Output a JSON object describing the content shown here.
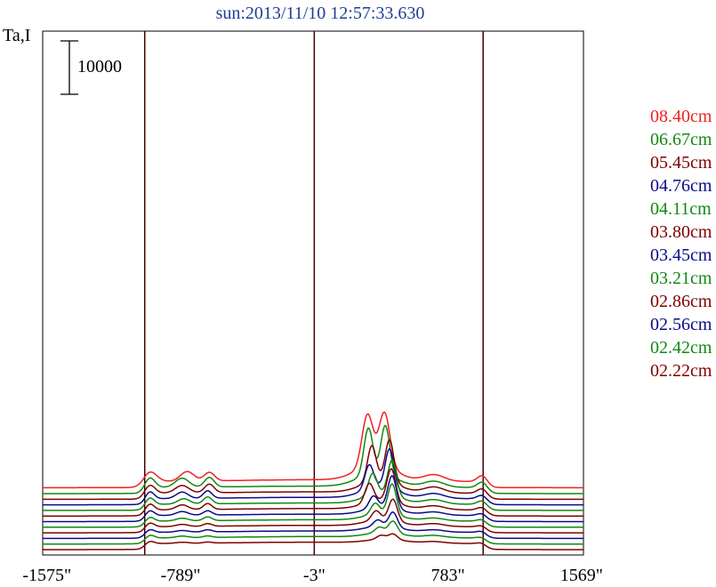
{
  "chart_data": {
    "type": "line",
    "title": "sun:2013/11/10 12:57:33.630",
    "ylabel": "Ta,I",
    "scale_bar": {
      "label": "10000",
      "value": 10000
    },
    "x_ticks": [
      "-1575\"",
      "-789\"",
      "-3\"",
      "783\"",
      "1569\""
    ],
    "x_tick_values": [
      -1575,
      -789,
      -3,
      783,
      1569
    ],
    "xlim": [
      -1600,
      1580
    ],
    "vertical_lines": [
      -1000,
      -3,
      990
    ],
    "legend_placement": "right",
    "colors": {
      "red": "#ee2222",
      "green": "#118811",
      "maroon": "#800000",
      "blue": "#0a0a8a"
    },
    "series": [
      {
        "name": "08.40cm",
        "color": "#ee2222",
        "baseline": 8600,
        "lobes": [
          [
            -970,
            40,
            1900
          ],
          [
            -750,
            40,
            1800
          ],
          [
            -620,
            30,
            1600
          ],
          [
            700,
            60,
            1200
          ],
          [
            990,
            30,
            1400
          ]
        ],
        "peaks": [
          [
            310,
            32,
            9600
          ],
          [
            410,
            32,
            10000
          ],
          [
            360,
            110,
            3000
          ]
        ],
        "center_level": 400
      },
      {
        "name": "06.67cm",
        "color": "#118811",
        "baseline": 7500,
        "lobes": [
          [
            -970,
            30,
            1900
          ],
          [
            -780,
            40,
            1700
          ],
          [
            -620,
            28,
            1800
          ],
          [
            700,
            60,
            1100
          ],
          [
            990,
            30,
            1300
          ]
        ],
        "peaks": [
          [
            315,
            26,
            8700
          ],
          [
            415,
            26,
            9200
          ],
          [
            365,
            110,
            2500
          ]
        ],
        "center_level": 300
      },
      {
        "name": "05.45cm",
        "color": "#800000",
        "baseline": 6430,
        "lobes": [
          [
            -970,
            30,
            1600
          ],
          [
            -780,
            40,
            1400
          ],
          [
            -620,
            28,
            1600
          ],
          [
            700,
            60,
            1100
          ],
          [
            990,
            30,
            1100
          ]
        ],
        "peaks": [
          [
            335,
            25,
            6500
          ],
          [
            440,
            25,
            7700
          ],
          [
            385,
            100,
            2500
          ]
        ],
        "center_level": 300
      },
      {
        "name": "04.76cm",
        "color": "#0a0a8a",
        "baseline": 5400,
        "lobes": [
          [
            -970,
            25,
            1400
          ],
          [
            -780,
            35,
            1200
          ],
          [
            -630,
            25,
            1400
          ],
          [
            700,
            60,
            900
          ],
          [
            990,
            30,
            900
          ]
        ],
        "peaks": [
          [
            320,
            25,
            4400
          ],
          [
            440,
            25,
            7300
          ],
          [
            385,
            100,
            2200
          ]
        ],
        "center_level": 300
      },
      {
        "name": "04.11cm",
        "color": "#118811",
        "baseline": 4350,
        "lobes": [
          [
            -970,
            25,
            1300
          ],
          [
            -770,
            35,
            1000
          ],
          [
            -630,
            25,
            1300
          ],
          [
            700,
            60,
            800
          ],
          [
            990,
            30,
            900
          ]
        ],
        "peaks": [
          [
            340,
            25,
            4000
          ],
          [
            455,
            25,
            6500
          ],
          [
            395,
            100,
            1900
          ]
        ],
        "center_level": 300
      },
      {
        "name": "03.80cm",
        "color": "#800000",
        "baseline": 3300,
        "lobes": [
          [
            -970,
            25,
            1200
          ],
          [
            -780,
            35,
            900
          ],
          [
            -630,
            25,
            1100
          ],
          [
            700,
            60,
            700
          ],
          [
            990,
            30,
            700
          ]
        ],
        "peaks": [
          [
            320,
            25,
            3500
          ],
          [
            450,
            25,
            6100
          ],
          [
            395,
            100,
            1700
          ]
        ],
        "center_level": 300
      },
      {
        "name": "03.45cm",
        "color": "#0a0a8a",
        "baseline": 2250,
        "lobes": [
          [
            -970,
            25,
            1000
          ],
          [
            -780,
            35,
            700
          ],
          [
            -630,
            25,
            800
          ],
          [
            700,
            60,
            600
          ],
          [
            990,
            30,
            600
          ]
        ],
        "peaks": [
          [
            345,
            25,
            2200
          ],
          [
            455,
            25,
            6000
          ],
          [
            400,
            100,
            1500
          ]
        ],
        "center_level": 300
      },
      {
        "name": "03.21cm",
        "color": "#118811",
        "baseline": 1200,
        "lobes": [
          [
            -970,
            25,
            800
          ],
          [
            -780,
            35,
            500
          ],
          [
            -630,
            25,
            700
          ],
          [
            700,
            60,
            500
          ],
          [
            990,
            30,
            500
          ]
        ],
        "peaks": [
          [
            355,
            25,
            2000
          ],
          [
            455,
            25,
            5700
          ],
          [
            400,
            100,
            1300
          ]
        ],
        "center_level": 300
      },
      {
        "name": "02.86cm",
        "color": "#800000",
        "baseline": 150,
        "lobes": [
          [
            -970,
            25,
            800
          ],
          [
            -780,
            35,
            400
          ],
          [
            -630,
            25,
            500
          ],
          [
            700,
            60,
            500
          ],
          [
            990,
            30,
            400
          ]
        ],
        "peaks": [
          [
            360,
            25,
            1700
          ],
          [
            460,
            25,
            4000
          ],
          [
            400,
            100,
            1200
          ]
        ],
        "center_level": 300
      },
      {
        "name": "02.56cm",
        "color": "#0a0a8a",
        "baseline": -900,
        "lobes": [
          [
            -970,
            25,
            600
          ],
          [
            -780,
            35,
            300
          ],
          [
            -630,
            25,
            400
          ],
          [
            700,
            60,
            400
          ],
          [
            990,
            30,
            400
          ]
        ],
        "peaks": [
          [
            370,
            25,
            1200
          ],
          [
            460,
            25,
            2800
          ],
          [
            400,
            100,
            1000
          ]
        ],
        "center_level": 300
      },
      {
        "name": "02.42cm",
        "color": "#118811",
        "baseline": -1950,
        "lobes": [
          [
            -970,
            25,
            600
          ],
          [
            -780,
            35,
            300
          ],
          [
            -630,
            25,
            300
          ],
          [
            700,
            60,
            400
          ],
          [
            990,
            30,
            300
          ]
        ],
        "peaks": [
          [
            380,
            25,
            1000
          ],
          [
            460,
            25,
            2200
          ],
          [
            410,
            100,
            900
          ]
        ],
        "center_level": 300
      },
      {
        "name": "02.22cm",
        "color": "#800000",
        "baseline": -3000,
        "lobes": [
          [
            -970,
            25,
            500
          ],
          [
            -780,
            35,
            200
          ],
          [
            -630,
            25,
            200
          ],
          [
            700,
            60,
            300
          ],
          [
            990,
            30,
            300
          ]
        ],
        "peaks": [
          [
            390,
            25,
            700
          ],
          [
            460,
            25,
            1000
          ],
          [
            420,
            100,
            700
          ]
        ],
        "center_level": 300
      }
    ]
  }
}
